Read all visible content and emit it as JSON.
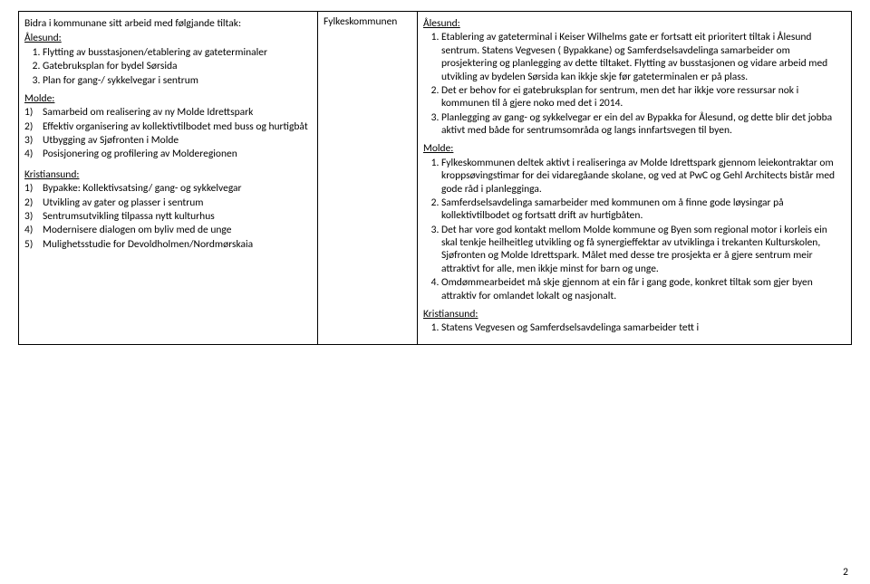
{
  "pageNumber": "2",
  "col1": {
    "intro": "Bidra i kommunane sitt arbeid med følgjande tiltak:",
    "alesund_head": "Ålesund:",
    "alesund_items": [
      "Flytting av busstasjonen/etablering av gateterminaler",
      "Gatebruksplan for bydel Sørsida",
      "Plan for gang-/ sykkelvegar i sentrum"
    ],
    "molde_head": "Molde:",
    "molde_items": [
      "Samarbeid om realisering av ny Molde Idrettspark",
      "Effektiv organisering av kollektivtilbodet med buss og hurtigbåt",
      "Utbygging av Sjøfronten i Molde",
      "Posisjonering og profilering av Molderegionen"
    ],
    "kristiansund_head": "Kristiansund:",
    "kristiansund_items": [
      "Bypakke: Kollektivsatsing/ gang- og sykkelvegar",
      "Utvikling av gater og plasser i sentrum",
      "Sentrumsutvikling tilpassa nytt kulturhus",
      "Modernisere dialogen om byliv med de unge",
      "Mulighetsstudie for Devoldholmen/Nordmørskaia"
    ]
  },
  "col2": {
    "text": "Fylkeskommunen"
  },
  "col3": {
    "alesund_head": "Ålesund:",
    "alesund_items": [
      "Etablering av gateterminal i Keiser Wilhelms gate er fortsatt eit prioritert tiltak i Ålesund sentrum. Statens Vegvesen ( Bypakkane) og Samferdselsavdelinga samarbeider om prosjektering  og planlegging av dette tiltaket. Flytting av busstasjonen og vidare arbeid med utvikling av bydelen Sørsida kan ikkje skje før gateterminalen er på plass.",
      "Det er behov for ei gatebruksplan for sentrum, men det har ikkje vore ressursar nok i kommunen til å gjere noko med det i 2014.",
      "Planlegging av gang- og sykkelvegar er ein del av Bypakka for Ålesund, og dette blir det jobba aktivt  med både for sentrumsområda og langs innfartsvegen til byen."
    ],
    "molde_head": "Molde:",
    "molde_items": [
      "Fylkeskommunen deltek aktivt i realiseringa av Molde Idrettspark gjennom leiekontraktar om kroppsøvingstimar for dei vidaregåande skolane, og ved at PwC og Gehl Architects bistår med gode råd i planlegginga.",
      "Samferdselsavdelinga samarbeider med kommunen om å finne gode løysingar på kollektivtilbodet og fortsatt drift av hurtigbåten.",
      "Det har vore god kontakt mellom Molde kommune og Byen som regional motor i korleis ein skal tenkje heilheitleg utvikling og få synergieffektar av utviklinga i trekanten Kulturskolen, Sjøfronten og Molde Idrettspark. Målet med desse tre prosjekta er å gjere sentrum meir attraktivt for alle, men ikkje minst for barn og unge.",
      "Omdømmearbeidet  må skje gjennom at ein får i gang gode, konkret tiltak som gjer byen attraktiv for omlandet lokalt og nasjonalt."
    ],
    "kristiansund_head": "Kristiansund:",
    "kristiansund_items": [
      "Statens Vegvesen og Samferdselsavdelinga samarbeider tett i"
    ]
  }
}
